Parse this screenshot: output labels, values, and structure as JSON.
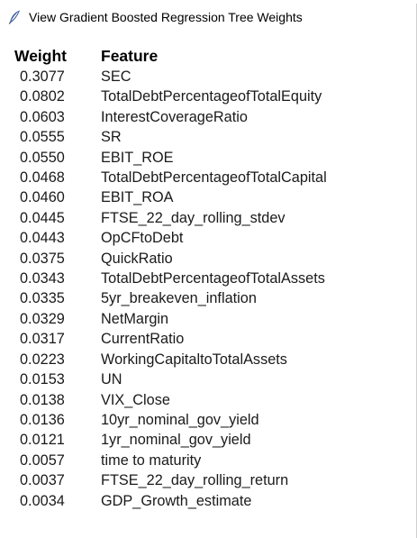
{
  "window": {
    "title": "View Gradient Boosted Regression Tree Weights",
    "icon": "feather-icon"
  },
  "table": {
    "headers": {
      "weight": "Weight",
      "feature": "Feature"
    },
    "rows": [
      {
        "weight": "0.3077",
        "feature": "SEC"
      },
      {
        "weight": "0.0802",
        "feature": "TotalDebtPercentageofTotalEquity"
      },
      {
        "weight": "0.0603",
        "feature": "InterestCoverageRatio"
      },
      {
        "weight": "0.0555",
        "feature": "SR"
      },
      {
        "weight": "0.0550",
        "feature": "EBIT_ROE"
      },
      {
        "weight": "0.0468",
        "feature": "TotalDebtPercentageofTotalCapital"
      },
      {
        "weight": "0.0460",
        "feature": "EBIT_ROA"
      },
      {
        "weight": "0.0445",
        "feature": "FTSE_22_day_rolling_stdev"
      },
      {
        "weight": "0.0443",
        "feature": "OpCFtoDebt"
      },
      {
        "weight": "0.0375",
        "feature": "QuickRatio"
      },
      {
        "weight": "0.0343",
        "feature": "TotalDebtPercentageofTotalAssets"
      },
      {
        "weight": "0.0335",
        "feature": "5yr_breakeven_inflation"
      },
      {
        "weight": "0.0329",
        "feature": "NetMargin"
      },
      {
        "weight": "0.0317",
        "feature": "CurrentRatio"
      },
      {
        "weight": "0.0223",
        "feature": "WorkingCapitaltoTotalAssets"
      },
      {
        "weight": "0.0153",
        "feature": "UN"
      },
      {
        "weight": "0.0138",
        "feature": "VIX_Close"
      },
      {
        "weight": "0.0136",
        "feature": "10yr_nominal_gov_yield"
      },
      {
        "weight": "0.0121",
        "feature": "1yr_nominal_gov_yield"
      },
      {
        "weight": "0.0057",
        "feature": "time to maturity"
      },
      {
        "weight": "0.0037",
        "feature": "FTSE_22_day_rolling_return"
      },
      {
        "weight": "0.0034",
        "feature": "GDP_Growth_estimate"
      }
    ]
  }
}
